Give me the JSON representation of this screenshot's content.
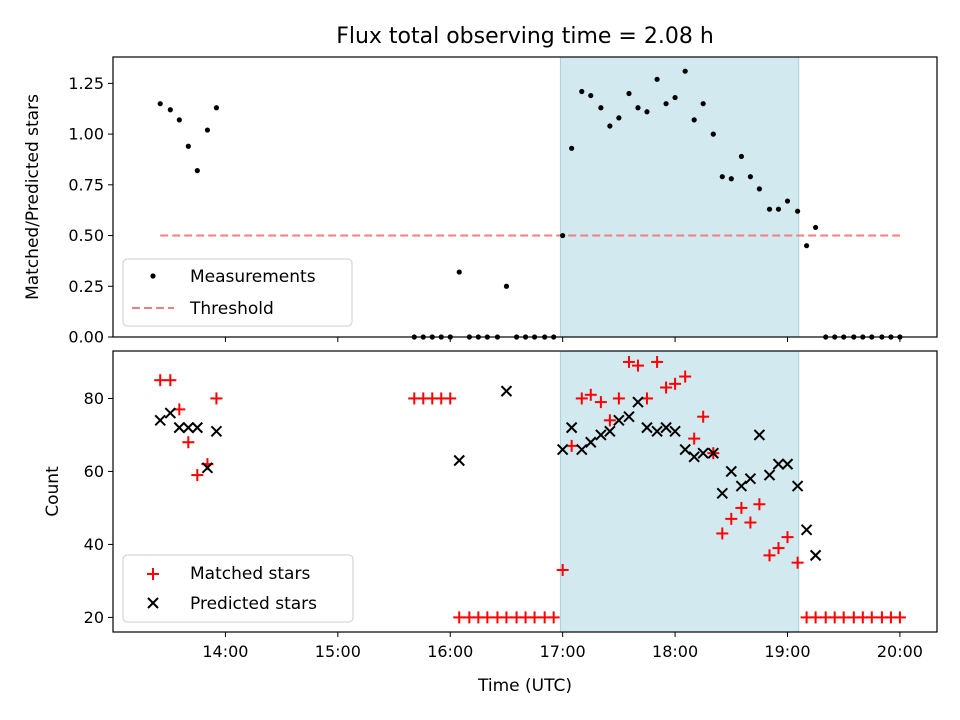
{
  "chart_data": [
    {
      "type": "scatter",
      "title": "Flux total observing time = 2.08 h",
      "xlabel": "",
      "ylabel": "Matched/Predicted stars",
      "xlim": [
        13.0,
        20.33
      ],
      "ylim": [
        0.0,
        1.38
      ],
      "yticks": [
        0.0,
        0.25,
        0.5,
        0.75,
        1.0,
        1.25
      ],
      "ytick_labels": [
        "0.00",
        "0.25",
        "0.50",
        "0.75",
        "1.00",
        "1.25"
      ],
      "shaded_region": {
        "x_start": 16.98,
        "x_end": 19.1,
        "color": "#d3e9f0"
      },
      "legend_position": "lower-left",
      "series": [
        {
          "name": "Measurements",
          "marker": "dot",
          "color": "#000000",
          "x": [
            13.42,
            13.51,
            13.59,
            13.67,
            13.75,
            13.84,
            13.92,
            15.68,
            15.76,
            15.84,
            15.92,
            16.0,
            16.08,
            16.17,
            16.25,
            16.33,
            16.42,
            16.5,
            16.59,
            16.67,
            16.75,
            16.84,
            16.92,
            17.0,
            17.08,
            17.17,
            17.25,
            17.34,
            17.42,
            17.5,
            17.59,
            17.67,
            17.75,
            17.84,
            17.92,
            18.0,
            18.09,
            18.17,
            18.25,
            18.34,
            18.42,
            18.5,
            18.59,
            18.67,
            18.75,
            18.84,
            18.92,
            19.0,
            19.09,
            19.17,
            19.25,
            19.34,
            19.42,
            19.5,
            19.59,
            19.67,
            19.75,
            19.84,
            19.92,
            20.0
          ],
          "y": [
            1.15,
            1.12,
            1.07,
            0.94,
            0.82,
            1.02,
            1.13,
            0.0,
            0.0,
            0.0,
            0.0,
            0.0,
            0.32,
            0.0,
            0.0,
            0.0,
            0.0,
            0.25,
            0.0,
            0.0,
            0.0,
            0.0,
            0.0,
            0.5,
            0.93,
            1.21,
            1.19,
            1.13,
            1.04,
            1.08,
            1.2,
            1.13,
            1.11,
            1.27,
            1.15,
            1.18,
            1.31,
            1.07,
            1.15,
            1.0,
            0.79,
            0.78,
            0.89,
            0.79,
            0.73,
            0.63,
            0.63,
            0.67,
            0.62,
            0.45,
            0.54,
            0.0,
            0.0,
            0.0,
            0.0,
            0.0,
            0.0,
            0.0,
            0.0,
            0.0
          ]
        },
        {
          "name": "Threshold",
          "marker": "dashed-line",
          "color": "#f08080",
          "x": [
            13.42,
            20.0
          ],
          "y": [
            0.5,
            0.5
          ]
        }
      ]
    },
    {
      "type": "scatter",
      "title": "",
      "xlabel": "Time (UTC)",
      "ylabel": "Count",
      "xlim": [
        13.0,
        20.33
      ],
      "ylim": [
        16.0,
        93.0
      ],
      "yticks": [
        20,
        40,
        60,
        80
      ],
      "ytick_labels": [
        "20",
        "40",
        "60",
        "80"
      ],
      "xticks": [
        14,
        15,
        16,
        17,
        18,
        19,
        20
      ],
      "xtick_labels": [
        "14:00",
        "15:00",
        "16:00",
        "17:00",
        "18:00",
        "19:00",
        "20:00"
      ],
      "shaded_region": {
        "x_start": 16.98,
        "x_end": 19.1,
        "color": "#d3e9f0"
      },
      "legend_position": "lower-left",
      "series": [
        {
          "name": "Matched stars",
          "marker": "plus",
          "color": "#ff0000",
          "x": [
            13.42,
            13.51,
            13.59,
            13.67,
            13.75,
            13.84,
            13.92,
            15.68,
            15.76,
            15.84,
            15.92,
            16.0,
            16.08,
            16.17,
            16.25,
            16.33,
            16.42,
            16.5,
            16.59,
            16.67,
            16.75,
            16.84,
            16.92,
            17.0,
            17.08,
            17.17,
            17.25,
            17.34,
            17.42,
            17.5,
            17.59,
            17.67,
            17.75,
            17.84,
            17.92,
            18.0,
            18.09,
            18.17,
            18.25,
            18.34,
            18.42,
            18.5,
            18.59,
            18.67,
            18.75,
            18.84,
            18.92,
            19.0,
            19.09,
            19.17,
            19.25,
            19.34,
            19.42,
            19.5,
            19.59,
            19.67,
            19.75,
            19.84,
            19.92,
            20.0
          ],
          "y": [
            85,
            85,
            77,
            68,
            59,
            62,
            80,
            80,
            80,
            80,
            80,
            80,
            20,
            20,
            20,
            20,
            20,
            20,
            20,
            20,
            20,
            20,
            20,
            33,
            67,
            80,
            81,
            79,
            74,
            80,
            90,
            89,
            80,
            90,
            83,
            84,
            86,
            69,
            75,
            65,
            43,
            47,
            50,
            46,
            51,
            37,
            39,
            42,
            35,
            20,
            20,
            20,
            20,
            20,
            20,
            20,
            20,
            20,
            20,
            20
          ]
        },
        {
          "name": "Predicted stars",
          "marker": "x",
          "color": "#000000",
          "x": [
            13.42,
            13.51,
            13.59,
            13.67,
            13.75,
            13.84,
            13.92,
            16.08,
            16.5,
            17.0,
            17.08,
            17.17,
            17.25,
            17.34,
            17.42,
            17.5,
            17.59,
            17.67,
            17.75,
            17.84,
            17.92,
            18.0,
            18.09,
            18.17,
            18.25,
            18.34,
            18.42,
            18.5,
            18.59,
            18.67,
            18.75,
            18.84,
            18.92,
            19.0,
            19.09,
            19.17,
            19.25
          ],
          "y": [
            74,
            76,
            72,
            72,
            72,
            61,
            71,
            63,
            82,
            66,
            72,
            66,
            68,
            70,
            71,
            74,
            75,
            79,
            72,
            71,
            72,
            71,
            66,
            64,
            65,
            65,
            54,
            60,
            56,
            58,
            70,
            59,
            62,
            62,
            56,
            44,
            37
          ]
        }
      ]
    }
  ]
}
